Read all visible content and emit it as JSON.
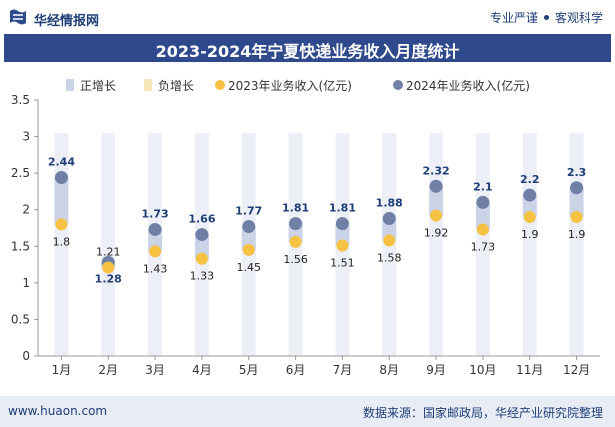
{
  "header": {
    "brand": "华经情报网",
    "slogan_left": "专业严谨",
    "slogan_right": "客观科学"
  },
  "title": "2023-2024年宁夏快递业务收入月度统计",
  "footer": {
    "website": "www.huaon.com",
    "source": "数据来源：国家邮政局，华经产业研究院整理"
  },
  "colors": {
    "series_2023": "#f5c242",
    "series_2024": "#6f7fa6",
    "title_bg": "#2f4a8c",
    "bar_up": "#cbd3e6",
    "bar_down": "#f5e6b8",
    "track": "#eceff5"
  },
  "chart_data": {
    "type": "line",
    "title": "2023-2024年宁夏快递业务收入月度统计",
    "categories": [
      "1月",
      "2月",
      "3月",
      "4月",
      "5月",
      "6月",
      "7月",
      "8月",
      "9月",
      "10月",
      "11月",
      "12月"
    ],
    "series": [
      {
        "name": "2023年业务收入(亿元)",
        "values": [
          1.8,
          1.21,
          1.43,
          1.33,
          1.45,
          1.56,
          1.51,
          1.58,
          1.92,
          1.73,
          1.9,
          1.9
        ]
      },
      {
        "name": "2024年业务收入(亿元)",
        "values": [
          2.44,
          1.28,
          1.73,
          1.66,
          1.77,
          1.81,
          1.81,
          1.88,
          2.32,
          2.1,
          2.2,
          2.3
        ]
      }
    ],
    "legend": [
      "正增长",
      "负增长",
      "2023年业务收入(亿元)",
      "2024年业务收入(亿元)"
    ],
    "ylim": [
      0,
      3.5
    ],
    "yticks": [
      "0",
      "0.5",
      "1",
      "1.5",
      "2",
      "2.5",
      "3",
      "3.5"
    ],
    "legend_position": "top",
    "grid": false
  }
}
